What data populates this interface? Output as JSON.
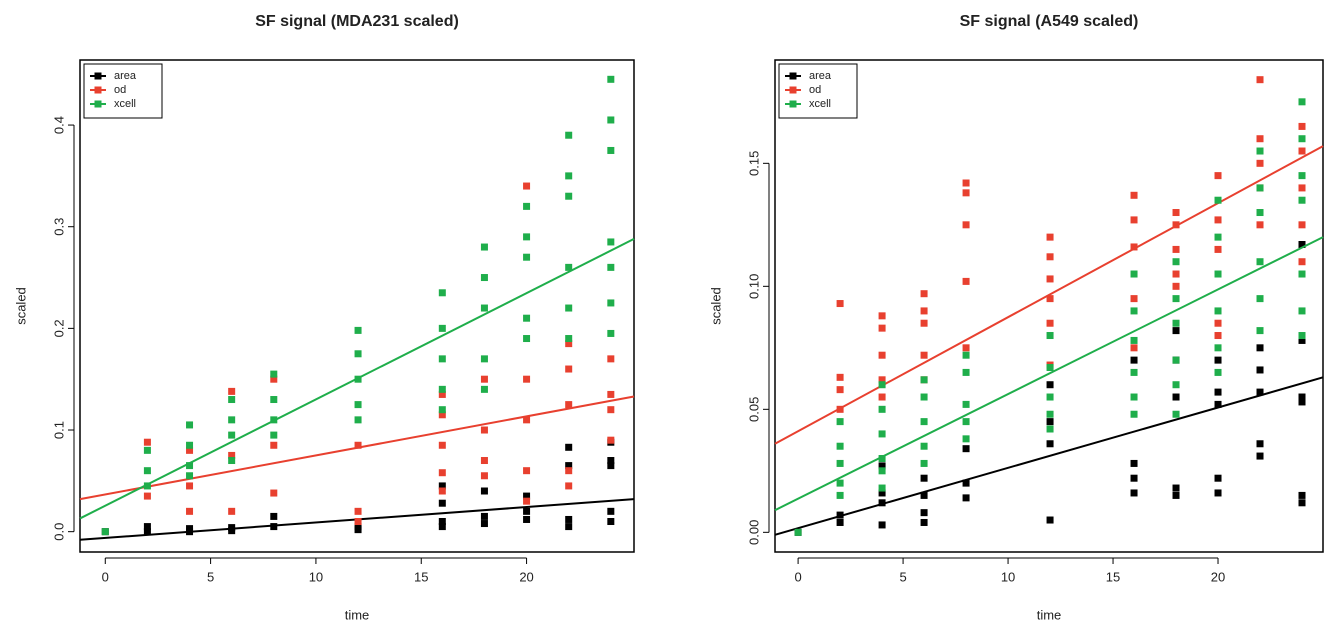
{
  "chart_data": [
    {
      "type": "scatter",
      "title": "SF signal (MDA231 scaled)",
      "x_label": "time",
      "y_label": "scaled",
      "xlim": [
        -1.2,
        25.1
      ],
      "ylim": [
        -0.02,
        0.464
      ],
      "xticks": [
        0,
        5,
        10,
        15,
        20
      ],
      "yticks": [
        {
          "value": 0,
          "label": "0.0"
        },
        0.1,
        0.2,
        0.3,
        0.4
      ],
      "legend": "top-left",
      "series": [
        {
          "name": "area",
          "color": "#000000",
          "x": [
            0,
            2,
            2,
            4,
            4,
            6,
            6,
            8,
            8,
            12,
            12,
            16,
            16,
            16,
            16,
            18,
            18,
            18,
            20,
            20,
            20,
            22,
            22,
            22,
            22,
            24,
            24,
            24,
            24,
            24
          ],
          "y": [
            0,
            0.005,
            0,
            0.003,
            0,
            0.004,
            0.001,
            0.015,
            0.005,
            0.002,
            0.005,
            0.045,
            0.028,
            0.01,
            0.005,
            0.04,
            0.015,
            0.008,
            0.035,
            0.02,
            0.012,
            0.083,
            0.065,
            0.012,
            0.005,
            0.088,
            0.07,
            0.065,
            0.02,
            0.01
          ],
          "trend": {
            "x": [
              -1.2,
              25.1
            ],
            "y": [
              -0.008,
              0.032
            ]
          }
        },
        {
          "name": "od",
          "color": "#e8402f",
          "x": [
            2,
            2,
            4,
            4,
            4,
            6,
            6,
            6,
            8,
            8,
            8,
            12,
            12,
            12,
            16,
            16,
            16,
            16,
            16,
            18,
            18,
            18,
            18,
            20,
            20,
            20,
            20,
            20,
            22,
            22,
            22,
            22,
            22,
            24,
            24,
            24,
            24
          ],
          "y": [
            0.088,
            0.035,
            0.08,
            0.045,
            0.02,
            0.138,
            0.075,
            0.02,
            0.15,
            0.085,
            0.038,
            0.085,
            0.02,
            0.01,
            0.135,
            0.115,
            0.085,
            0.058,
            0.04,
            0.15,
            0.1,
            0.07,
            0.055,
            0.34,
            0.15,
            0.11,
            0.06,
            0.03,
            0.185,
            0.16,
            0.125,
            0.06,
            0.045,
            0.17,
            0.135,
            0.12,
            0.09
          ],
          "trend": {
            "x": [
              -1.2,
              25.1
            ],
            "y": [
              0.032,
              0.133
            ]
          }
        },
        {
          "name": "xcell",
          "color": "#1fae4b",
          "x": [
            0,
            2,
            2,
            2,
            4,
            4,
            4,
            4,
            6,
            6,
            6,
            6,
            8,
            8,
            8,
            8,
            12,
            12,
            12,
            12,
            12,
            16,
            16,
            16,
            16,
            16,
            18,
            18,
            18,
            18,
            18,
            20,
            20,
            20,
            20,
            20,
            22,
            22,
            22,
            22,
            22,
            22,
            24,
            24,
            24,
            24,
            24,
            24,
            24
          ],
          "y": [
            0,
            0.08,
            0.06,
            0.045,
            0.105,
            0.085,
            0.065,
            0.055,
            0.13,
            0.11,
            0.095,
            0.07,
            0.155,
            0.13,
            0.11,
            0.095,
            0.198,
            0.175,
            0.15,
            0.125,
            0.11,
            0.235,
            0.2,
            0.17,
            0.14,
            0.12,
            0.28,
            0.25,
            0.22,
            0.17,
            0.14,
            0.32,
            0.29,
            0.27,
            0.21,
            0.19,
            0.39,
            0.35,
            0.33,
            0.26,
            0.22,
            0.19,
            0.445,
            0.405,
            0.375,
            0.285,
            0.26,
            0.225,
            0.195
          ],
          "trend": {
            "x": [
              -1.2,
              25.1
            ],
            "y": [
              0.013,
              0.288
            ]
          }
        }
      ]
    },
    {
      "type": "scatter",
      "title": "SF signal (A549 scaled)",
      "x_label": "time",
      "y_label": "scaled",
      "xlim": [
        -1.1,
        25.0
      ],
      "ylim": [
        -0.008,
        0.192
      ],
      "xticks": [
        0,
        5,
        10,
        15,
        20
      ],
      "yticks": [
        {
          "value": 0,
          "label": "0.00"
        },
        0.05,
        {
          "value": 0.1,
          "label": "0.10"
        },
        0.15
      ],
      "legend": "top-left",
      "series": [
        {
          "name": "area",
          "color": "#000000",
          "x": [
            0,
            2,
            2,
            4,
            4,
            4,
            4,
            6,
            6,
            6,
            6,
            8,
            8,
            8,
            12,
            12,
            12,
            12,
            16,
            16,
            16,
            16,
            18,
            18,
            18,
            18,
            18,
            20,
            20,
            20,
            20,
            20,
            22,
            22,
            22,
            22,
            22,
            24,
            24,
            24,
            24,
            24,
            24
          ],
          "y": [
            0,
            0.007,
            0.004,
            0.027,
            0.016,
            0.012,
            0.003,
            0.022,
            0.015,
            0.008,
            0.004,
            0.034,
            0.02,
            0.014,
            0.06,
            0.045,
            0.036,
            0.005,
            0.07,
            0.028,
            0.022,
            0.016,
            0.082,
            0.07,
            0.055,
            0.018,
            0.015,
            0.07,
            0.057,
            0.052,
            0.022,
            0.016,
            0.075,
            0.066,
            0.057,
            0.036,
            0.031,
            0.117,
            0.078,
            0.055,
            0.053,
            0.015,
            0.012
          ],
          "trend": {
            "x": [
              -1.1,
              25.0
            ],
            "y": [
              -0.001,
              0.063
            ]
          }
        },
        {
          "name": "od",
          "color": "#e8402f",
          "x": [
            2,
            2,
            2,
            2,
            4,
            4,
            4,
            4,
            4,
            6,
            6,
            6,
            6,
            6,
            8,
            8,
            8,
            8,
            8,
            12,
            12,
            12,
            12,
            12,
            12,
            16,
            16,
            16,
            16,
            16,
            18,
            18,
            18,
            18,
            18,
            20,
            20,
            20,
            20,
            20,
            22,
            22,
            22,
            22,
            22,
            24,
            24,
            24,
            24,
            24
          ],
          "y": [
            0.093,
            0.063,
            0.058,
            0.05,
            0.088,
            0.083,
            0.072,
            0.062,
            0.055,
            0.097,
            0.09,
            0.085,
            0.072,
            0.062,
            0.142,
            0.138,
            0.125,
            0.102,
            0.075,
            0.12,
            0.112,
            0.103,
            0.095,
            0.085,
            0.068,
            0.137,
            0.127,
            0.116,
            0.095,
            0.075,
            0.13,
            0.125,
            0.115,
            0.105,
            0.1,
            0.145,
            0.127,
            0.115,
            0.085,
            0.08,
            0.184,
            0.16,
            0.15,
            0.14,
            0.125,
            0.165,
            0.155,
            0.14,
            0.125,
            0.11
          ],
          "trend": {
            "x": [
              -1.1,
              25.0
            ],
            "y": [
              0.036,
              0.157
            ]
          }
        },
        {
          "name": "xcell",
          "color": "#1fae4b",
          "x": [
            0,
            2,
            2,
            2,
            2,
            2,
            4,
            4,
            4,
            4,
            4,
            4,
            6,
            6,
            6,
            6,
            6,
            8,
            8,
            8,
            8,
            8,
            12,
            12,
            12,
            12,
            12,
            16,
            16,
            16,
            16,
            16,
            16,
            18,
            18,
            18,
            18,
            18,
            18,
            20,
            20,
            20,
            20,
            20,
            20,
            22,
            22,
            22,
            22,
            22,
            22,
            24,
            24,
            24,
            24,
            24,
            24,
            24
          ],
          "y": [
            0,
            0.045,
            0.035,
            0.028,
            0.02,
            0.015,
            0.06,
            0.05,
            0.04,
            0.03,
            0.025,
            0.018,
            0.062,
            0.055,
            0.045,
            0.035,
            0.028,
            0.072,
            0.065,
            0.052,
            0.045,
            0.038,
            0.08,
            0.067,
            0.055,
            0.048,
            0.042,
            0.105,
            0.09,
            0.078,
            0.065,
            0.055,
            0.048,
            0.11,
            0.095,
            0.085,
            0.07,
            0.06,
            0.048,
            0.135,
            0.12,
            0.105,
            0.09,
            0.075,
            0.065,
            0.155,
            0.14,
            0.13,
            0.11,
            0.095,
            0.082,
            0.175,
            0.16,
            0.145,
            0.135,
            0.105,
            0.09,
            0.08
          ],
          "trend": {
            "x": [
              -1.1,
              25.0
            ],
            "y": [
              0.009,
              0.12
            ]
          }
        }
      ]
    }
  ]
}
